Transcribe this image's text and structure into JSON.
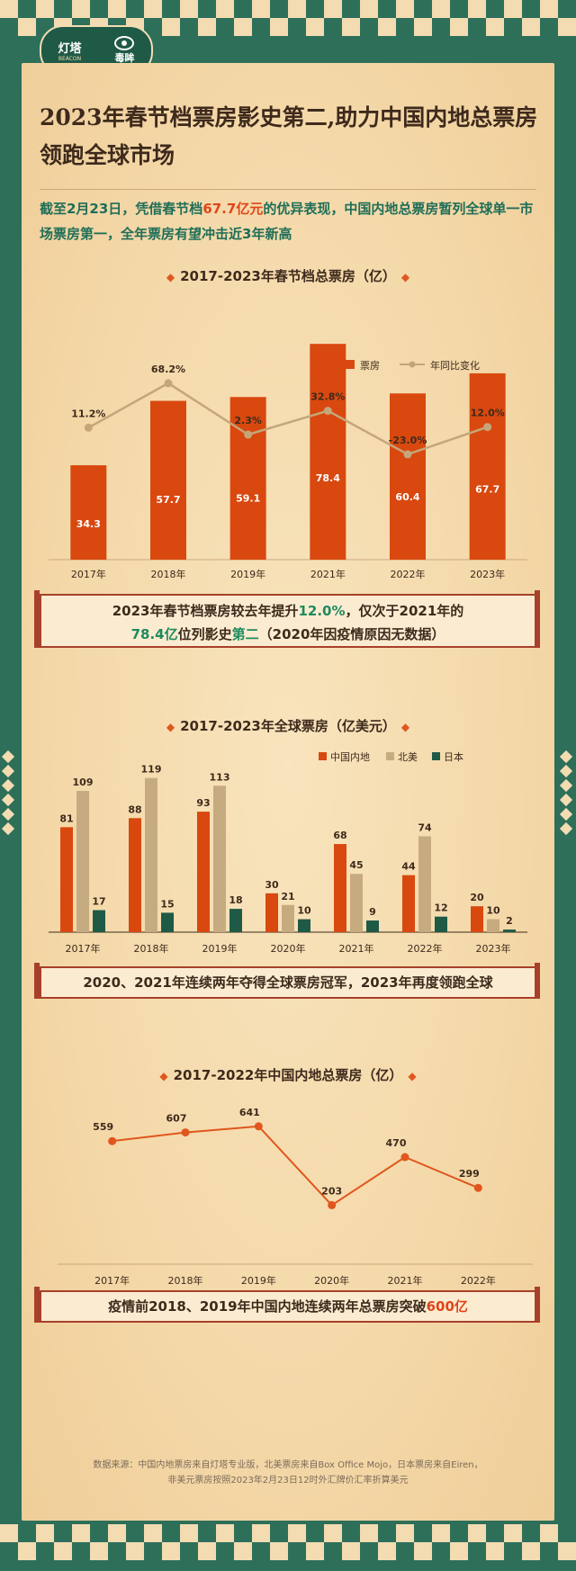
{
  "logo": {
    "brand_cn": "灯塔",
    "brand_en": "BEACON",
    "partner": "毒眸"
  },
  "header": {
    "title": "2023年春节档票房影史第二,助力中国内地总票房领跑全球市场",
    "subtitle_parts": [
      "截至2月23日，凭借春节档",
      "67.7亿元",
      "的优异表现，中国内地总票房暂列全球单一市场票房第一，全年票房有望冲击近3年新高"
    ]
  },
  "chart_data": [
    {
      "type": "bar",
      "title": "2017-2023年春节档总票房（亿）",
      "categories": [
        "2017年",
        "2018年",
        "2019年",
        "2021年",
        "2022年",
        "2023年"
      ],
      "series": [
        {
          "name": "票房",
          "type": "bar",
          "values": [
            34.3,
            57.7,
            59.1,
            78.4,
            60.4,
            67.7
          ],
          "color": "#d9480f"
        },
        {
          "name": "年同比变化",
          "type": "line",
          "values": [
            11.2,
            68.2,
            2.3,
            32.8,
            -23.0,
            12.0
          ],
          "labels": [
            "11.2%",
            "68.2%",
            "2.3%",
            "32.8%",
            "-23.0%",
            "12.0%"
          ],
          "color": "#c4a67a"
        }
      ],
      "ylim": [
        0,
        85
      ],
      "ylim_line": [
        -60,
        90
      ],
      "legend": "top-right"
    },
    {
      "type": "bar",
      "title": "2017-2023年全球票房（亿美元）",
      "categories": [
        "2017年",
        "2018年",
        "2019年",
        "2020年",
        "2021年",
        "2022年",
        "2023年"
      ],
      "series": [
        {
          "name": "中国内地",
          "values": [
            81,
            88,
            93,
            30,
            68,
            44,
            20
          ],
          "color": "#d9480f"
        },
        {
          "name": "北美",
          "values": [
            109,
            119,
            113,
            21,
            45,
            74,
            10
          ],
          "color": "#c7ab80"
        },
        {
          "name": "日本",
          "values": [
            17,
            15,
            18,
            10,
            9,
            12,
            2
          ],
          "color": "#1f5a47"
        }
      ],
      "ylim": [
        0,
        125
      ],
      "legend": "top-right"
    },
    {
      "type": "line",
      "title": "2017-2022年中国内地总票房（亿）",
      "categories": [
        "2017年",
        "2018年",
        "2019年",
        "2020年",
        "2021年",
        "2022年"
      ],
      "series": [
        {
          "name": "",
          "values": [
            559,
            607,
            641,
            203,
            470,
            299
          ],
          "color": "#e0561e"
        }
      ],
      "ylim": [
        100,
        750
      ]
    }
  ],
  "callouts": {
    "c1_line1": [
      "2023年春节档票房较去年提升",
      "12.0%",
      "，仅次于2021年的"
    ],
    "c1_line2": [
      "78.4亿",
      "位列影史",
      "第二",
      "（2020年因疫情原因无数据）"
    ],
    "c2": "2020、2021年连续两年夺得全球票房冠军，2023年再度领跑全球",
    "c3": [
      "疫情前2018、2019年中国内地连续两年总票房突破",
      "600亿"
    ]
  },
  "source": {
    "line1": "数据来源：中国内地票房来自灯塔专业版，北美票房来自Box Office Mojo，日本票房来自Eiren，",
    "line2": "非美元票房按照2023年2月23日12时外汇牌价汇率折算美元"
  },
  "colors": {
    "green": "#2e6f5a",
    "cream": "#f3dcb2",
    "orange": "#d9480f",
    "tan": "#c7ab80",
    "dark_green": "#1f5a47"
  }
}
